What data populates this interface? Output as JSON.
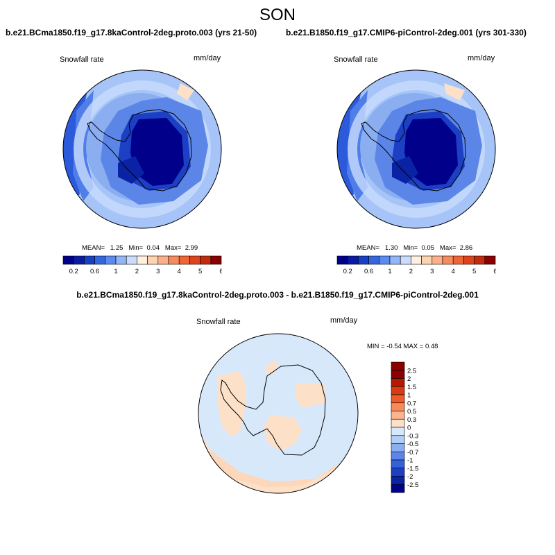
{
  "season": "SON",
  "panels": [
    {
      "title": "b.e21.BCma1850.f19_g17.8kaControl-2deg.proto.003 (yrs 21-50)",
      "variable": "Snowfall rate",
      "units": "mm/day",
      "stats": {
        "mean_label": "MEAN=",
        "mean": "1.25",
        "min_label": "Min=",
        "min": "0.04",
        "max_label": "Max=",
        "max": "2.99"
      },
      "colorbar": {
        "labels": [
          "0.2",
          "0.6",
          "1",
          "2",
          "3",
          "4",
          "5",
          "6"
        ]
      }
    },
    {
      "title": "b.e21.B1850.f19_g17.CMIP6-piControl-2deg.001 (yrs 301-330)",
      "variable": "Snowfall rate",
      "units": "mm/day",
      "stats": {
        "mean_label": "MEAN=",
        "mean": "1.30",
        "min_label": "Min=",
        "min": "0.05",
        "max_label": "Max=",
        "max": "2.86"
      },
      "colorbar": {
        "labels": [
          "0.2",
          "0.6",
          "1",
          "2",
          "3",
          "4",
          "5",
          "6"
        ]
      }
    }
  ],
  "difference": {
    "title": "b.e21.BCma1850.f19_g17.8kaControl-2deg.proto.003 - b.e21.B1850.f19_g17.CMIP6-piControl-2deg.001",
    "variable": "Snowfall rate",
    "units": "mm/day",
    "stats": {
      "min_label": "MIN =",
      "min": "-0.54",
      "max_label": "MAX =",
      "max": "0.48"
    },
    "colorbar": {
      "labels": [
        "2.5",
        "2",
        "1.5",
        "1",
        "0.7",
        "0.5",
        "0.3",
        "0",
        "-0.3",
        "-0.5",
        "-0.7",
        "-1",
        "-1.5",
        "-2",
        "-2.5"
      ]
    }
  },
  "colors": {
    "seq_colorbar": [
      "#00008b",
      "#0a1aa6",
      "#1840c7",
      "#3366e0",
      "#5b8bf0",
      "#93b6f8",
      "#c9dcfc",
      "#fff0e0",
      "#fdd3b0",
      "#fbb08a",
      "#f78a5e",
      "#ef6533",
      "#e0421c",
      "#c42a0e",
      "#8b0000"
    ],
    "div_colorbar": [
      "#8b0000",
      "#b51a00",
      "#d83a14",
      "#f05a28",
      "#f88a5a",
      "#fbb58e",
      "#fde0c8",
      "#d8e8fb",
      "#b2cdf6",
      "#8aaef0",
      "#5b86e8",
      "#3660da",
      "#1c3fc4",
      "#0a22a4",
      "#00008b"
    ]
  }
}
